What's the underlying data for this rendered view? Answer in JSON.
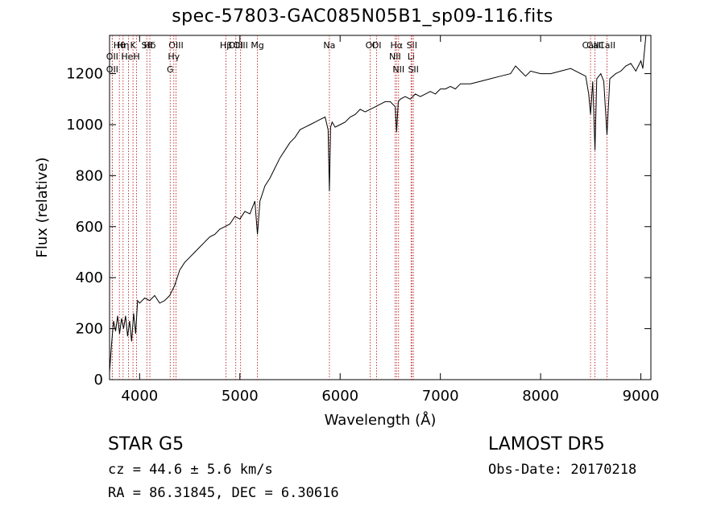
{
  "chart_data": {
    "type": "line",
    "title": "spec-57803-GAC085N05B1_sp09-116.fits",
    "xlabel": "Wavelength (Å)",
    "ylabel": "Flux (relative)",
    "xlim": [
      3700,
      9100
    ],
    "ylim": [
      0,
      1350
    ],
    "x_ticks": [
      4000,
      5000,
      6000,
      7000,
      8000,
      9000
    ],
    "y_ticks": [
      0,
      200,
      400,
      600,
      800,
      1000,
      1200
    ],
    "grid": false,
    "series": [
      {
        "x": [
          3700,
          3720,
          3740,
          3760,
          3780,
          3800,
          3820,
          3840,
          3860,
          3880,
          3900,
          3920,
          3940,
          3960,
          3980,
          4000,
          4050,
          4100,
          4150,
          4200,
          4250,
          4300,
          4350,
          4400,
          4450,
          4500,
          4550,
          4600,
          4650,
          4700,
          4750,
          4800,
          4850,
          4900,
          4950,
          5000,
          5050,
          5100,
          5150,
          5175,
          5200,
          5250,
          5300,
          5350,
          5400,
          5450,
          5500,
          5550,
          5600,
          5650,
          5700,
          5750,
          5800,
          5850,
          5880,
          5893,
          5905,
          5920,
          5950,
          6000,
          6050,
          6100,
          6150,
          6200,
          6250,
          6300,
          6350,
          6400,
          6450,
          6500,
          6550,
          6563,
          6580,
          6600,
          6650,
          6700,
          6750,
          6800,
          6850,
          6900,
          6950,
          7000,
          7050,
          7100,
          7150,
          7200,
          7300,
          7400,
          7500,
          7600,
          7700,
          7750,
          7800,
          7850,
          7900,
          8000,
          8100,
          8200,
          8300,
          8400,
          8450,
          8480,
          8498,
          8520,
          8542,
          8560,
          8600,
          8630,
          8662,
          8690,
          8750,
          8800,
          8850,
          8900,
          8950,
          9000,
          9020,
          9050
        ],
        "y": [
          30,
          140,
          230,
          190,
          250,
          180,
          240,
          200,
          250,
          170,
          230,
          150,
          260,
          180,
          310,
          300,
          320,
          310,
          330,
          300,
          310,
          330,
          370,
          430,
          460,
          480,
          500,
          520,
          540,
          560,
          570,
          590,
          600,
          610,
          640,
          630,
          660,
          650,
          700,
          570,
          700,
          760,
          790,
          830,
          870,
          900,
          930,
          950,
          980,
          990,
          1000,
          1010,
          1020,
          1030,
          980,
          740,
          990,
          1010,
          990,
          1000,
          1010,
          1030,
          1040,
          1060,
          1050,
          1060,
          1070,
          1080,
          1090,
          1090,
          1070,
          970,
          1090,
          1100,
          1110,
          1100,
          1120,
          1110,
          1120,
          1130,
          1120,
          1140,
          1140,
          1150,
          1140,
          1160,
          1160,
          1170,
          1180,
          1190,
          1200,
          1230,
          1210,
          1190,
          1210,
          1200,
          1200,
          1210,
          1220,
          1200,
          1190,
          1120,
          1040,
          1170,
          900,
          1180,
          1200,
          1170,
          960,
          1180,
          1200,
          1210,
          1230,
          1240,
          1210,
          1250,
          1220,
          1350
        ]
      }
    ],
    "line_markers": [
      {
        "label": "Hθ",
        "x": 3798
      },
      {
        "label": "OII",
        "x": 3727
      },
      {
        "label": "OII",
        "x": 3727
      },
      {
        "label": "Hη",
        "x": 3835
      },
      {
        "label": "HeI",
        "x": 3889
      },
      {
        "label": "K",
        "x": 3934
      },
      {
        "label": "H",
        "x": 3969
      },
      {
        "label": "Hδ",
        "x": 4102
      },
      {
        "label": "SII",
        "x": 4072
      },
      {
        "label": "OIII",
        "x": 4363
      },
      {
        "label": "Hγ",
        "x": 4341
      },
      {
        "label": "G",
        "x": 4305
      },
      {
        "label": "Hβ",
        "x": 4861
      },
      {
        "label": "OIII",
        "x": 4959
      },
      {
        "label": "OIII",
        "x": 5007
      },
      {
        "label": "Mg",
        "x": 5175
      },
      {
        "label": "Na",
        "x": 5893
      },
      {
        "label": "OI",
        "x": 6300
      },
      {
        "label": "OI",
        "x": 6364
      },
      {
        "label": "Hα",
        "x": 6563
      },
      {
        "label": "NII",
        "x": 6548
      },
      {
        "label": "NII",
        "x": 6583
      },
      {
        "label": "SII",
        "x": 6716
      },
      {
        "label": "Li",
        "x": 6708
      },
      {
        "label": "SII",
        "x": 6731
      },
      {
        "label": "CaII",
        "x": 8542
      },
      {
        "label": "CaII",
        "x": 8498
      },
      {
        "label": "CaII",
        "x": 8662
      }
    ]
  },
  "info": {
    "class_line": "STAR     G5",
    "cz_line": "cz = 44.6 ± 5.6 km/s",
    "radec_line": "RA =  86.31845, DEC =   6.30616",
    "survey": "LAMOST DR5",
    "obs_date": "Obs-Date: 20170218"
  }
}
